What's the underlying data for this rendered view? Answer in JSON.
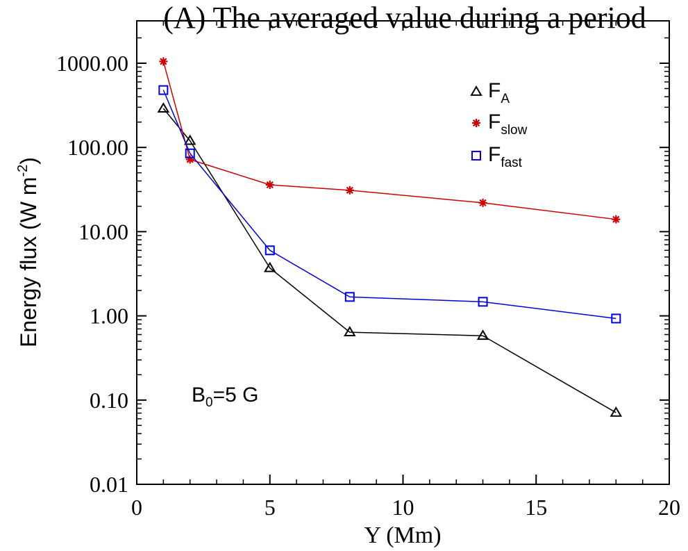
{
  "chart_data": {
    "type": "line",
    "title": "(A) The averaged value during a period",
    "xlabel": "Y (Mm)",
    "ylabel": {
      "main": "Energy flux (W m",
      "sup": "-2",
      "close": ")"
    },
    "xlim": [
      0,
      20
    ],
    "ylim": [
      0.01,
      2000
    ],
    "yscale": "log",
    "xticks": [
      0,
      5,
      10,
      15,
      20
    ],
    "xtick_labels": [
      "0",
      "5",
      "10",
      "15",
      "20"
    ],
    "yticks": [
      0.01,
      0.1,
      1,
      10,
      100,
      1000
    ],
    "ytick_labels": [
      "0.01",
      "0.10",
      "1.00",
      "10.00",
      "100.00",
      "1000.00"
    ],
    "x": [
      1,
      2,
      5,
      8,
      13,
      18
    ],
    "series": [
      {
        "key": "fa",
        "name": "F",
        "sub": "A",
        "marker": "triangle",
        "color": "#000000",
        "values": [
          290,
          120,
          3.7,
          0.64,
          0.58,
          0.071
        ]
      },
      {
        "key": "fslow",
        "name": "F",
        "sub": "slow",
        "marker": "asterisk",
        "color": "#cc0000",
        "values": [
          1050,
          72,
          36,
          31,
          22,
          14
        ]
      },
      {
        "key": "ffast",
        "name": "F",
        "sub": "fast",
        "marker": "square",
        "color": "#0000dd",
        "values": [
          480,
          85,
          6.0,
          1.68,
          1.47,
          0.93
        ]
      }
    ],
    "annotation": {
      "main": "B",
      "sub": "0",
      "rest": "=5 G"
    }
  }
}
